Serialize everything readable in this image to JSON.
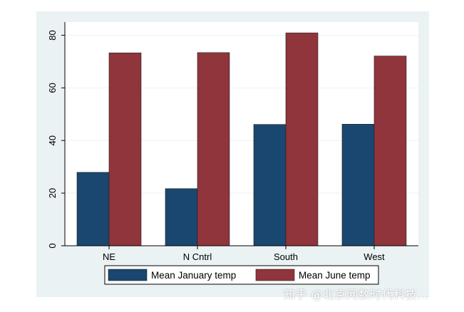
{
  "chart_data": {
    "type": "bar",
    "title": "",
    "xlabel": "",
    "ylabel": "",
    "categories": [
      "NE",
      "N Cntrl",
      "South",
      "West"
    ],
    "series": [
      {
        "name": "Mean January temp",
        "values": [
          27.9,
          21.7,
          46.1,
          46.2
        ],
        "color": "#1a476f"
      },
      {
        "name": "Mean June temp",
        "values": [
          73.3,
          73.4,
          80.9,
          72.1
        ],
        "color": "#90353b"
      }
    ],
    "ylim": [
      0,
      85
    ],
    "yticks": [
      0,
      20,
      40,
      60,
      80
    ],
    "grid": true,
    "legend_position": "bottom"
  },
  "colors": {
    "panel_background": "#eaf2f3",
    "plot_background": "#ffffff",
    "grid": "#eaf2f3"
  },
  "watermark": "知乎 @北京网数时代科技..."
}
